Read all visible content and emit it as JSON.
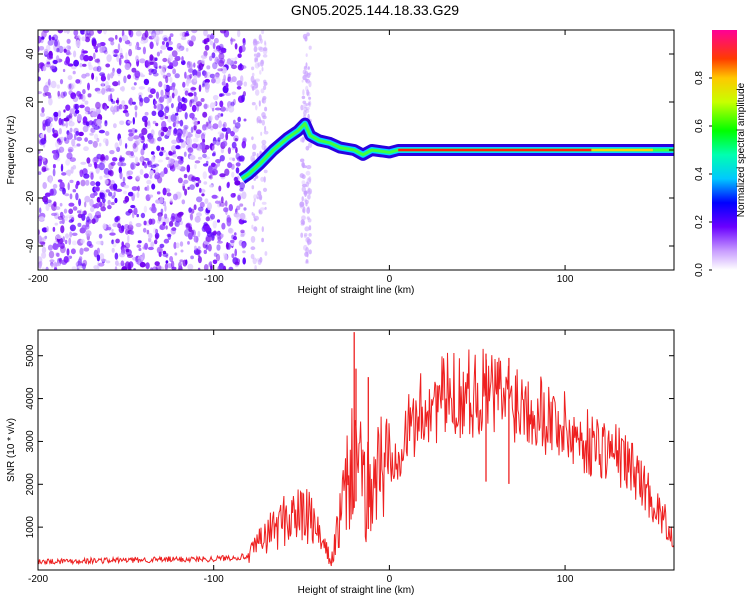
{
  "title": "GN05.2025.144.18.33.G29",
  "chart_data": [
    {
      "type": "heatmap",
      "xlabel": "Height of straight line (km)",
      "ylabel": "Frequency (Hz)",
      "xlim": [
        -200,
        162
      ],
      "ylim": [
        -50,
        50
      ],
      "xticks": [
        "-200",
        "-100",
        "0",
        "100"
      ],
      "yticks": [
        "-40",
        "-20",
        "0",
        "20",
        "40"
      ],
      "colorbar": {
        "label": "Normalized spectral amplitude",
        "range": [
          0,
          1
        ],
        "ticks": [
          "0.0",
          "0.2",
          "0.4",
          "0.6",
          "0.8"
        ]
      },
      "ridge": [
        {
          "x": -84,
          "y": -12
        },
        {
          "x": -80,
          "y": -10
        },
        {
          "x": -74,
          "y": -6
        },
        {
          "x": -66,
          "y": 0
        },
        {
          "x": -58,
          "y": 5
        },
        {
          "x": -52,
          "y": 8
        },
        {
          "x": -48,
          "y": 11
        },
        {
          "x": -45,
          "y": 6
        },
        {
          "x": -40,
          "y": 4
        },
        {
          "x": -34,
          "y": 3
        },
        {
          "x": -28,
          "y": 1
        },
        {
          "x": -20,
          "y": 0
        },
        {
          "x": -15,
          "y": -2
        },
        {
          "x": -10,
          "y": 0
        },
        {
          "x": 0,
          "y": -1
        },
        {
          "x": 5,
          "y": 0
        },
        {
          "x": 50,
          "y": 0
        },
        {
          "x": 100,
          "y": 0
        },
        {
          "x": 162,
          "y": 0
        }
      ]
    },
    {
      "type": "line",
      "xlabel": "Height of straight line (km)",
      "ylabel": "SNR (10 * v/v)",
      "xlim": [
        -200,
        162
      ],
      "ylim": [
        0,
        5600
      ],
      "xticks": [
        "-200",
        "-100",
        "0",
        "100"
      ],
      "yticks": [
        "1000",
        "2000",
        "3000",
        "4000",
        "5000"
      ],
      "series_color": "#ee2020",
      "envelope": [
        {
          "x": -200,
          "y": 200
        },
        {
          "x": -150,
          "y": 230
        },
        {
          "x": -100,
          "y": 260
        },
        {
          "x": -80,
          "y": 320
        },
        {
          "x": -75,
          "y": 600
        },
        {
          "x": -65,
          "y": 1000
        },
        {
          "x": -55,
          "y": 1300
        },
        {
          "x": -45,
          "y": 1200
        },
        {
          "x": -38,
          "y": 600
        },
        {
          "x": -33,
          "y": 200
        },
        {
          "x": -28,
          "y": 1200
        },
        {
          "x": -22,
          "y": 2300
        },
        {
          "x": -19,
          "y": 3200
        },
        {
          "x": -15,
          "y": 1700
        },
        {
          "x": -8,
          "y": 2200
        },
        {
          "x": 0,
          "y": 2600
        },
        {
          "x": 10,
          "y": 3200
        },
        {
          "x": 20,
          "y": 3800
        },
        {
          "x": 30,
          "y": 4000
        },
        {
          "x": 40,
          "y": 4100
        },
        {
          "x": 50,
          "y": 4150
        },
        {
          "x": 60,
          "y": 4100
        },
        {
          "x": 70,
          "y": 4000
        },
        {
          "x": 80,
          "y": 3900
        },
        {
          "x": 90,
          "y": 3600
        },
        {
          "x": 100,
          "y": 3300
        },
        {
          "x": 110,
          "y": 3000
        },
        {
          "x": 120,
          "y": 2900
        },
        {
          "x": 130,
          "y": 2700
        },
        {
          "x": 140,
          "y": 2300
        },
        {
          "x": 150,
          "y": 1600
        },
        {
          "x": 162,
          "y": 800
        }
      ],
      "spikes": [
        {
          "x": -20,
          "y": 5550
        },
        {
          "x": -19,
          "y": 4700
        },
        {
          "x": -12,
          "y": 4500
        },
        {
          "x": 55,
          "y": 5050
        },
        {
          "x": 68,
          "y": 4950
        }
      ]
    }
  ]
}
